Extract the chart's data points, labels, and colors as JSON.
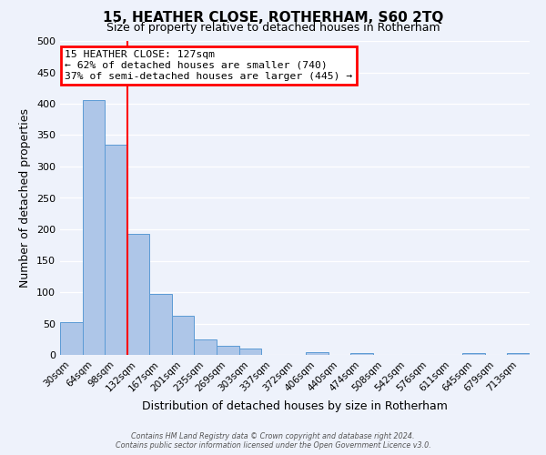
{
  "title": "15, HEATHER CLOSE, ROTHERHAM, S60 2TQ",
  "subtitle": "Size of property relative to detached houses in Rotherham",
  "xlabel": "Distribution of detached houses by size in Rotherham",
  "ylabel": "Number of detached properties",
  "bar_labels": [
    "30sqm",
    "64sqm",
    "98sqm",
    "132sqm",
    "167sqm",
    "201sqm",
    "235sqm",
    "269sqm",
    "303sqm",
    "337sqm",
    "372sqm",
    "406sqm",
    "440sqm",
    "474sqm",
    "508sqm",
    "542sqm",
    "576sqm",
    "611sqm",
    "645sqm",
    "679sqm",
    "713sqm"
  ],
  "bar_values": [
    52,
    406,
    335,
    193,
    97,
    63,
    25,
    15,
    10,
    0,
    0,
    5,
    0,
    3,
    0,
    0,
    0,
    0,
    3,
    0,
    3
  ],
  "bar_color": "#aec6e8",
  "bar_edge_color": "#5b9bd5",
  "vline_color": "red",
  "vline_x_index": 3,
  "ylim": [
    0,
    500
  ],
  "yticks": [
    0,
    50,
    100,
    150,
    200,
    250,
    300,
    350,
    400,
    450,
    500
  ],
  "annotation_title": "15 HEATHER CLOSE: 127sqm",
  "annotation_line1": "← 62% of detached houses are smaller (740)",
  "annotation_line2": "37% of semi-detached houses are larger (445) →",
  "footer_line1": "Contains HM Land Registry data © Crown copyright and database right 2024.",
  "footer_line2": "Contains public sector information licensed under the Open Government Licence v3.0.",
  "bg_color": "#eef2fb",
  "grid_color": "white",
  "title_fontsize": 11,
  "subtitle_fontsize": 9,
  "ylabel_fontsize": 9,
  "xlabel_fontsize": 9,
  "tick_fontsize": 7.5
}
